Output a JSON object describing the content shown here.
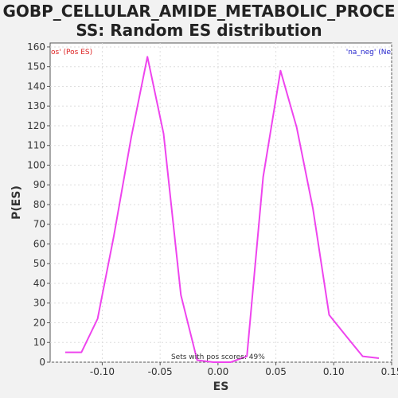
{
  "chart_data": {
    "type": "line",
    "title_line1": "GOBP_CELLULAR_AMIDE_METABOLIC_PROCE",
    "title_line2": "SS: Random ES distribution",
    "xlabel": "ES",
    "ylabel": "P(ES)",
    "xlim": [
      -0.145,
      0.15
    ],
    "ylim": [
      0,
      162
    ],
    "x_ticks": [
      -0.1,
      -0.05,
      0.0,
      0.05,
      0.1,
      0.15
    ],
    "x_tick_labels": [
      "-0.10",
      "-0.05",
      "0.00",
      "0.05",
      "0.10",
      "0.15"
    ],
    "y_ticks": [
      0,
      10,
      20,
      30,
      40,
      50,
      60,
      70,
      80,
      90,
      100,
      110,
      120,
      130,
      140,
      150,
      160
    ],
    "y_tick_labels": [
      "0",
      "10",
      "20",
      "30",
      "40",
      "50",
      "60",
      "70",
      "80",
      "90",
      "100",
      "110",
      "120",
      "130",
      "140",
      "150",
      "160"
    ],
    "grid": true,
    "line_color": "#ee44ee",
    "legend_left": {
      "text": "os' (Pos ES)",
      "color": "#dd2222"
    },
    "legend_right": {
      "text": "'na_neg' (Ne",
      "color": "#2222cc"
    },
    "annotation": "Sets with pos scores: 49%",
    "series": [
      {
        "x": [
          -0.132,
          -0.118,
          -0.104,
          -0.09,
          -0.075,
          -0.061,
          -0.047,
          -0.032,
          -0.018,
          -0.004,
          0.011,
          0.025,
          0.039,
          0.054,
          0.068,
          0.082,
          0.096,
          0.111,
          0.125,
          0.139
        ],
        "y": [
          5,
          5,
          22,
          64,
          114,
          155,
          116,
          34,
          1,
          0,
          0,
          3,
          94,
          148,
          119,
          78,
          24,
          13,
          3,
          2
        ]
      }
    ]
  }
}
